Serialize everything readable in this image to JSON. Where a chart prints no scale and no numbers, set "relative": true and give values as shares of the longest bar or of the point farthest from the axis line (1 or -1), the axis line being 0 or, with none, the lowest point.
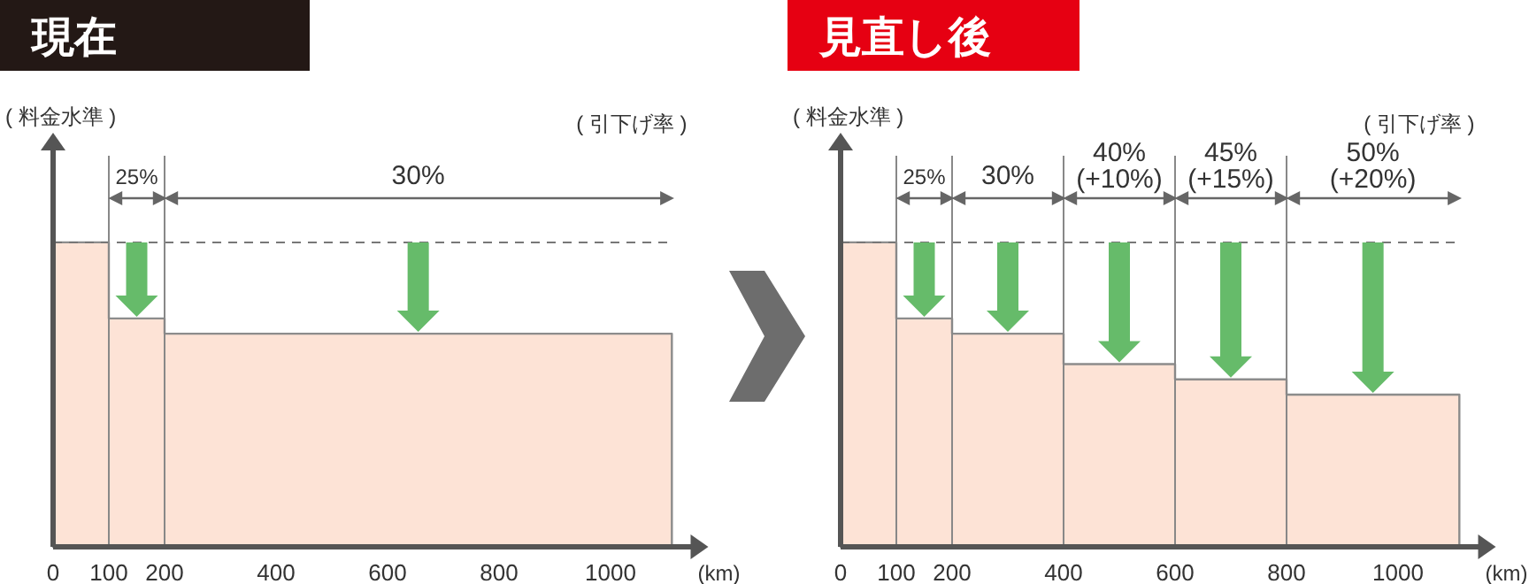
{
  "chart_data": [
    {
      "type": "area",
      "title": "現在",
      "ylabel": "( 料金水準 )",
      "xlabel": "(km)",
      "relative": true,
      "color": "#fde3d6",
      "x": [
        0,
        100,
        100,
        200,
        200,
        1110
      ],
      "values": [
        1,
        1,
        0.75,
        0.75,
        0.7,
        0.7
      ],
      "xlim": [
        0,
        1150
      ],
      "xticks": [
        0,
        100,
        200,
        400,
        600,
        800,
        1000
      ],
      "tick_labels": "x",
      "ref_lines": [
        {
          "axis": "y",
          "value": 1,
          "line_style": "dashed",
          "color": "#777777"
        },
        {
          "axis": "x",
          "value": 100,
          "color": "#888888"
        },
        {
          "axis": "x",
          "value": 200,
          "color": "#888888"
        }
      ],
      "annotations": [
        "25%",
        "30%",
        "( 引下げ率 )"
      ]
    },
    {
      "type": "area",
      "title": "見直し後",
      "ylabel": "( 料金水準 )",
      "xlabel": "(km)",
      "relative": true,
      "color": "#fde3d6",
      "x": [
        0,
        100,
        100,
        200,
        200,
        400,
        400,
        600,
        600,
        800,
        800,
        1110
      ],
      "values": [
        1,
        1,
        0.75,
        0.75,
        0.7,
        0.7,
        0.6,
        0.6,
        0.55,
        0.55,
        0.5,
        0.5
      ],
      "xlim": [
        0,
        1150
      ],
      "xticks": [
        0,
        100,
        200,
        400,
        600,
        800,
        1000
      ],
      "tick_labels": "x",
      "ref_lines": [
        {
          "axis": "y",
          "value": 1,
          "line_style": "dashed",
          "color": "#777777"
        },
        {
          "axis": "x",
          "value": 100,
          "color": "#888888"
        },
        {
          "axis": "x",
          "value": 200,
          "color": "#888888"
        },
        {
          "axis": "x",
          "value": 400,
          "color": "#888888"
        },
        {
          "axis": "x",
          "value": 600,
          "color": "#888888"
        },
        {
          "axis": "x",
          "value": 800,
          "color": "#888888"
        }
      ],
      "annotations": [
        "25%",
        "30%",
        "40%\n(+10%)",
        "45%\n(+15%)",
        "50%\n(+20%)",
        "( 引下げ率 )"
      ]
    }
  ]
}
